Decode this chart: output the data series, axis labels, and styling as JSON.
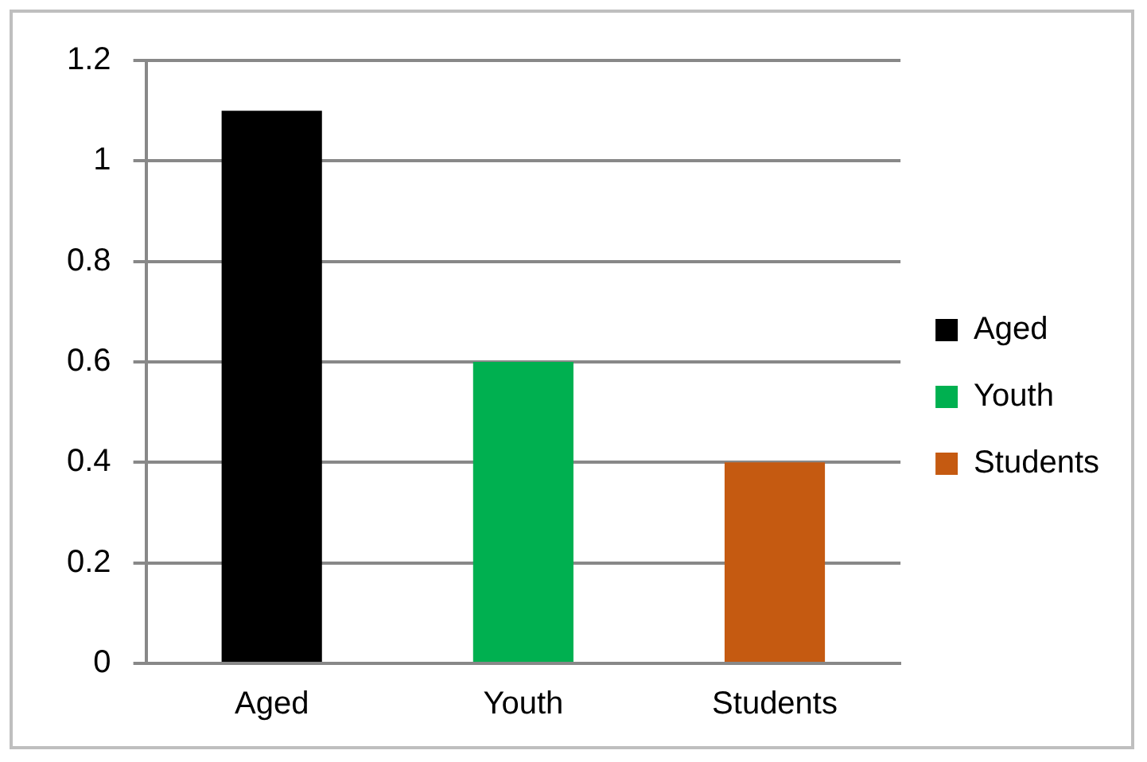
{
  "chart_data": {
    "type": "bar",
    "categories": [
      "Aged",
      "Youth",
      "Students"
    ],
    "series": [
      {
        "name": "Aged",
        "color": "#000000",
        "values": [
          1.1,
          null,
          null
        ]
      },
      {
        "name": "Youth",
        "color": "#00b050",
        "values": [
          null,
          0.6,
          null
        ]
      },
      {
        "name": "Students",
        "color": "#c55a11",
        "values": [
          null,
          null,
          0.4
        ]
      }
    ],
    "ylim": [
      0,
      1.2
    ],
    "yticks": [
      0,
      0.2,
      0.4,
      0.6,
      0.8,
      1,
      1.2
    ],
    "grid": "y",
    "legend": "right"
  }
}
